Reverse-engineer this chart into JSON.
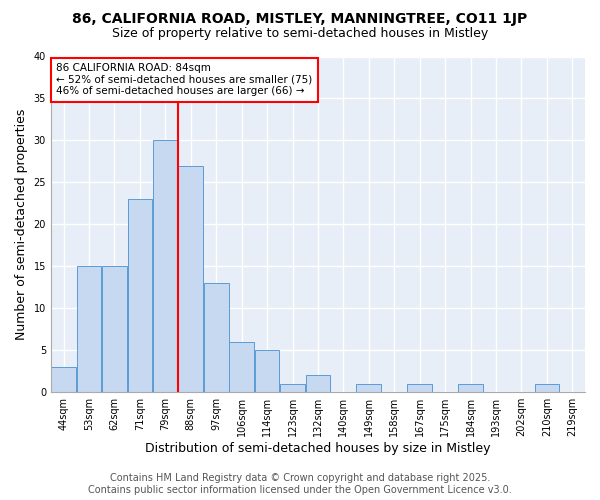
{
  "title": "86, CALIFORNIA ROAD, MISTLEY, MANNINGTREE, CO11 1JP",
  "subtitle": "Size of property relative to semi-detached houses in Mistley",
  "xlabel": "Distribution of semi-detached houses by size in Mistley",
  "ylabel": "Number of semi-detached properties",
  "categories": [
    "44sqm",
    "53sqm",
    "62sqm",
    "71sqm",
    "79sqm",
    "88sqm",
    "97sqm",
    "106sqm",
    "114sqm",
    "123sqm",
    "132sqm",
    "140sqm",
    "149sqm",
    "158sqm",
    "167sqm",
    "175sqm",
    "184sqm",
    "193sqm",
    "202sqm",
    "210sqm",
    "219sqm"
  ],
  "values": [
    3,
    15,
    15,
    23,
    30,
    27,
    13,
    6,
    5,
    1,
    2,
    0,
    1,
    0,
    1,
    0,
    1,
    0,
    0,
    1,
    0
  ],
  "bar_color": "#c6d9f0",
  "bar_edge_color": "#5b9bd5",
  "vline_x": 5,
  "vline_color": "red",
  "annotation_text": "86 CALIFORNIA ROAD: 84sqm\n← 52% of semi-detached houses are smaller (75)\n46% of semi-detached houses are larger (66) →",
  "annotation_box_color": "white",
  "annotation_box_edge_color": "red",
  "ylim": [
    0,
    40
  ],
  "yticks": [
    0,
    5,
    10,
    15,
    20,
    25,
    30,
    35,
    40
  ],
  "footnote": "Contains HM Land Registry data © Crown copyright and database right 2025.\nContains public sector information licensed under the Open Government Licence v3.0.",
  "background_color": "#e8eef7",
  "grid_color": "white",
  "title_fontsize": 10,
  "subtitle_fontsize": 9,
  "axis_label_fontsize": 9,
  "tick_fontsize": 7,
  "footnote_fontsize": 7,
  "annotation_fontsize": 7.5
}
